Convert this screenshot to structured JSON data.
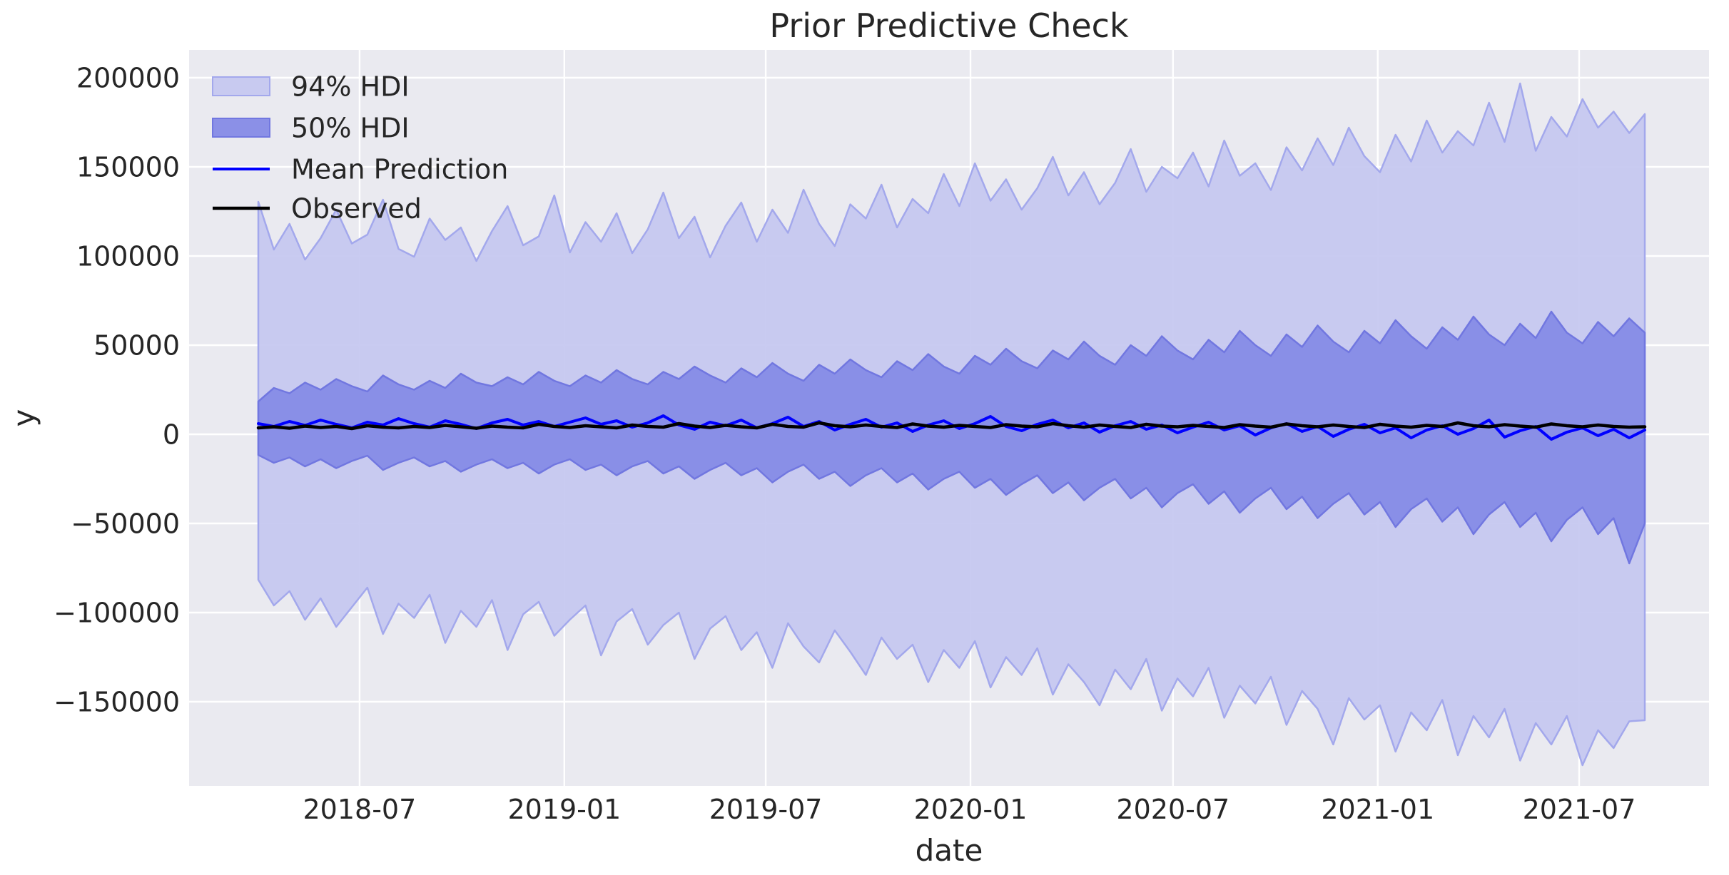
{
  "figure": {
    "background": "#ffffff",
    "axes_background": "#eaeaf0",
    "gridline_color": "#ffffff",
    "text_color": "#262626"
  },
  "chart_data": {
    "type": "line",
    "title": "Prior Predictive Check",
    "xlabel": "date",
    "ylabel": "y",
    "grid": true,
    "legend_position": "upper-left",
    "ylim": [
      -197200,
      215600
    ],
    "y_ticks": [
      {
        "value": 200000,
        "label": "200000"
      },
      {
        "value": 150000,
        "label": "150000"
      },
      {
        "value": 100000,
        "label": "100000"
      },
      {
        "value": 50000,
        "label": "50000"
      },
      {
        "value": 0,
        "label": "0"
      },
      {
        "value": -50000,
        "label": "−50000"
      },
      {
        "value": -100000,
        "label": "−100000"
      },
      {
        "value": -150000,
        "label": "−150000"
      }
    ],
    "x_ticks": [
      {
        "date": "2018-07-01",
        "label": "2018-07"
      },
      {
        "date": "2019-01-01",
        "label": "2019-01"
      },
      {
        "date": "2019-07-01",
        "label": "2019-07"
      },
      {
        "date": "2020-01-01",
        "label": "2020-01"
      },
      {
        "date": "2020-07-01",
        "label": "2020-07"
      },
      {
        "date": "2021-01-01",
        "label": "2021-01"
      },
      {
        "date": "2021-07-01",
        "label": "2021-07"
      }
    ],
    "x": [
      "2018-04-01",
      "2018-04-15",
      "2018-04-29",
      "2018-05-13",
      "2018-05-27",
      "2018-06-10",
      "2018-06-24",
      "2018-07-08",
      "2018-07-22",
      "2018-08-05",
      "2018-08-19",
      "2018-09-02",
      "2018-09-16",
      "2018-09-30",
      "2018-10-14",
      "2018-10-28",
      "2018-11-11",
      "2018-11-25",
      "2018-12-09",
      "2018-12-23",
      "2019-01-06",
      "2019-01-20",
      "2019-02-03",
      "2019-02-17",
      "2019-03-03",
      "2019-03-17",
      "2019-03-31",
      "2019-04-14",
      "2019-04-28",
      "2019-05-12",
      "2019-05-26",
      "2019-06-09",
      "2019-06-23",
      "2019-07-07",
      "2019-07-21",
      "2019-08-04",
      "2019-08-18",
      "2019-09-01",
      "2019-09-15",
      "2019-09-29",
      "2019-10-13",
      "2019-10-27",
      "2019-11-10",
      "2019-11-24",
      "2019-12-08",
      "2019-12-22",
      "2020-01-05",
      "2020-01-19",
      "2020-02-02",
      "2020-02-16",
      "2020-03-01",
      "2020-03-15",
      "2020-03-29",
      "2020-04-12",
      "2020-04-26",
      "2020-05-10",
      "2020-05-24",
      "2020-06-07",
      "2020-06-21",
      "2020-07-05",
      "2020-07-19",
      "2020-08-02",
      "2020-08-16",
      "2020-08-30",
      "2020-09-13",
      "2020-09-27",
      "2020-10-11",
      "2020-10-25",
      "2020-11-08",
      "2020-11-22",
      "2020-12-06",
      "2020-12-20",
      "2021-01-03",
      "2021-01-17",
      "2021-01-31",
      "2021-02-14",
      "2021-02-28",
      "2021-03-14",
      "2021-03-28",
      "2021-04-11",
      "2021-04-25",
      "2021-05-09",
      "2021-05-23",
      "2021-06-06",
      "2021-06-20",
      "2021-07-04",
      "2021-07-18",
      "2021-08-01",
      "2021-08-15",
      "2021-08-29"
    ],
    "series": [
      {
        "name": "94% HDI",
        "role": "band",
        "fill": "#c4c7f0",
        "fill_opacity": 0.92,
        "edge": "#a3a8ec",
        "upper": [
          130400,
          103600,
          118000,
          98000,
          110000,
          126000,
          107000,
          112000,
          131600,
          104000,
          99600,
          121000,
          109000,
          116000,
          97200,
          114000,
          128000,
          106000,
          111000,
          134000,
          102000,
          119000,
          108000,
          124000,
          101600,
          115000,
          135600,
          110000,
          122000,
          99200,
          117000,
          130000,
          108000,
          126000,
          113000,
          137200,
          118000,
          105600,
          129000,
          121000,
          140000,
          116000,
          132000,
          124000,
          146000,
          128000,
          152000,
          131000,
          143000,
          126000,
          138000,
          155600,
          134000,
          147000,
          129000,
          141000,
          160000,
          136000,
          150000,
          143600,
          158000,
          139000,
          164800,
          145000,
          152000,
          137000,
          161000,
          148000,
          166000,
          151000,
          172000,
          156000,
          147000,
          168000,
          153000,
          176000,
          158000,
          170000,
          162000,
          186000,
          164000,
          196800,
          159000,
          178000,
          167000,
          188000,
          172000,
          181000,
          169000,
          179600
        ],
        "lower": [
          -81600,
          -96000,
          -88000,
          -104000,
          -92000,
          -108000,
          -97000,
          -86000,
          -112000,
          -95000,
          -103000,
          -90000,
          -117000,
          -99000,
          -108000,
          -93000,
          -121000,
          -101000,
          -94000,
          -113000,
          -104000,
          -96000,
          -124000,
          -105000,
          -98000,
          -118000,
          -107000,
          -100000,
          -126000,
          -109000,
          -102000,
          -121000,
          -111000,
          -131000,
          -106000,
          -119000,
          -128000,
          -110000,
          -122000,
          -135000,
          -114000,
          -126000,
          -118000,
          -139000,
          -121000,
          -131000,
          -116000,
          -142000,
          -125000,
          -135000,
          -120000,
          -146000,
          -129000,
          -139000,
          -152000,
          -132000,
          -143000,
          -126000,
          -155000,
          -137000,
          -147000,
          -131000,
          -159000,
          -141000,
          -151000,
          -136000,
          -163000,
          -144000,
          -154000,
          -174000,
          -148000,
          -160000,
          -152000,
          -178000,
          -156000,
          -166000,
          -149000,
          -180000,
          -158000,
          -170000,
          -154000,
          -183000,
          -162000,
          -174000,
          -158000,
          -185600,
          -166000,
          -176000,
          -161000,
          -160400
        ]
      },
      {
        "name": "50% HDI",
        "role": "band",
        "fill": "#868be6",
        "fill_opacity": 0.95,
        "edge": "#7177e0",
        "upper": [
          18400,
          26000,
          23000,
          29000,
          25000,
          31000,
          27000,
          24000,
          33000,
          28000,
          25000,
          30000,
          26000,
          34000,
          29000,
          27000,
          32000,
          28000,
          35000,
          30000,
          27000,
          33000,
          29000,
          36000,
          31000,
          28000,
          35000,
          31000,
          38000,
          33000,
          29000,
          37000,
          32000,
          40000,
          34000,
          30000,
          39000,
          34000,
          42000,
          36000,
          32000,
          41000,
          36000,
          45000,
          38000,
          34000,
          44000,
          39000,
          48000,
          41000,
          37000,
          47000,
          42000,
          52000,
          44000,
          39000,
          50000,
          44000,
          55000,
          47000,
          42000,
          53000,
          46000,
          58000,
          50000,
          44000,
          56000,
          49000,
          61000,
          52000,
          46000,
          58000,
          51000,
          64000,
          55000,
          48000,
          60000,
          53000,
          66000,
          56000,
          50000,
          62000,
          54000,
          68800,
          57000,
          51000,
          63000,
          55000,
          65000,
          57000
        ],
        "lower": [
          -11600,
          -16000,
          -13000,
          -18000,
          -14000,
          -19000,
          -15000,
          -12000,
          -20000,
          -16000,
          -13000,
          -18000,
          -15000,
          -21000,
          -17000,
          -14000,
          -19000,
          -16000,
          -22000,
          -17000,
          -14000,
          -20000,
          -17000,
          -23000,
          -18000,
          -15000,
          -22000,
          -18000,
          -25000,
          -20000,
          -16000,
          -23000,
          -19000,
          -27000,
          -21000,
          -17000,
          -25000,
          -21000,
          -29000,
          -23000,
          -19000,
          -27000,
          -22000,
          -31000,
          -25000,
          -21000,
          -30000,
          -25000,
          -34000,
          -28000,
          -23000,
          -33000,
          -27000,
          -37000,
          -30000,
          -25000,
          -36000,
          -30000,
          -41000,
          -33000,
          -28000,
          -39000,
          -32000,
          -44000,
          -36000,
          -30000,
          -42000,
          -35000,
          -47000,
          -39000,
          -33000,
          -45000,
          -38000,
          -52000,
          -42000,
          -36000,
          -49000,
          -41000,
          -56000,
          -45000,
          -38000,
          -52000,
          -44000,
          -60000,
          -48000,
          -41000,
          -56000,
          -47000,
          -72400,
          -50000
        ]
      },
      {
        "name": "Mean Prediction",
        "role": "line",
        "color": "#0000ff",
        "width": 4,
        "values": [
          6000,
          4400,
          7200,
          5000,
          8000,
          5600,
          3600,
          6800,
          5200,
          8800,
          6000,
          4000,
          7600,
          5600,
          3200,
          6400,
          8400,
          5200,
          7200,
          4400,
          6800,
          9200,
          5600,
          7600,
          4000,
          6400,
          10400,
          5200,
          2800,
          6800,
          4800,
          8000,
          3600,
          6000,
          9600,
          4400,
          7200,
          2400,
          5600,
          8400,
          4000,
          6400,
          1600,
          5200,
          7600,
          3200,
          6000,
          10000,
          4400,
          2000,
          5600,
          8000,
          3600,
          6400,
          1200,
          4800,
          7200,
          2800,
          5200,
          800,
          4000,
          6800,
          2400,
          4800,
          -400,
          3600,
          6000,
          1600,
          4400,
          -1200,
          2800,
          5600,
          800,
          3600,
          -2000,
          2400,
          4800,
          0,
          3200,
          8000,
          -1600,
          2000,
          4400,
          -2800,
          1200,
          3600,
          -800,
          2800,
          -2000,
          2400
        ]
      },
      {
        "name": "Observed",
        "role": "line",
        "color": "#000000",
        "width": 4.5,
        "values": [
          3600,
          4200,
          3400,
          4600,
          3800,
          4400,
          3200,
          4800,
          4000,
          3600,
          4400,
          3800,
          5000,
          4200,
          3400,
          4600,
          4000,
          3600,
          5600,
          4400,
          3800,
          4800,
          4200,
          3600,
          5200,
          4400,
          4000,
          6000,
          4600,
          3800,
          5000,
          4200,
          3600,
          5600,
          4400,
          4000,
          6400,
          4800,
          4200,
          5200,
          4400,
          3800,
          5800,
          4600,
          4000,
          5000,
          4400,
          3800,
          5400,
          4600,
          4200,
          6000,
          4800,
          4000,
          5200,
          4400,
          3800,
          5600,
          4600,
          4200,
          5000,
          4400,
          3800,
          5400,
          4600,
          4000,
          5800,
          4800,
          4200,
          5200,
          4400,
          3800,
          5600,
          4600,
          4000,
          5000,
          4400,
          6400,
          4800,
          4200,
          5400,
          4600,
          4000,
          5800,
          4800,
          4200,
          5200,
          4400,
          4000,
          4200
        ]
      }
    ]
  }
}
